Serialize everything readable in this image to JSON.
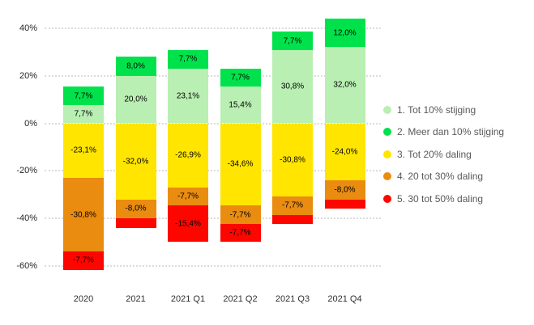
{
  "chart_data": {
    "type": "bar",
    "subtype": "diverging-stacked-bar",
    "title": "",
    "xlabel": "",
    "ylabel": "",
    "categories": [
      "2020",
      "2021",
      "2021 Q1",
      "2021 Q2",
      "2021 Q3",
      "2021 Q4"
    ],
    "y_axis": {
      "unit": "%",
      "range": [
        -65,
        48
      ],
      "grid": "dotted",
      "ticks": [
        {
          "value": 40,
          "label": "40%"
        },
        {
          "value": 20,
          "label": "20%"
        },
        {
          "value": 0,
          "label": "0%"
        },
        {
          "value": -20,
          "label": "-20%"
        },
        {
          "value": -40,
          "label": "-40%"
        },
        {
          "value": -60,
          "label": "-60%"
        }
      ]
    },
    "series": [
      {
        "name": "1. Tot 10% stijging",
        "color": "#b9efb2",
        "values": [
          7.7,
          20.0,
          23.1,
          15.4,
          30.8,
          32.0
        ],
        "labels": [
          "7,7%",
          "20,0%",
          "23,1%",
          "15,4%",
          "30,8%",
          "32,0%"
        ]
      },
      {
        "name": "2. Meer dan 10% stijging",
        "color": "#00e24b",
        "values": [
          7.7,
          8.0,
          7.7,
          7.7,
          7.7,
          12.0
        ],
        "labels": [
          "7,7%",
          "8,0%",
          "7,7%",
          "7,7%",
          "7,7%",
          "12,0%"
        ]
      },
      {
        "name": "3. Tot 20% daling",
        "color": "#ffe500",
        "values": [
          -23.1,
          -32.0,
          -26.9,
          -34.6,
          -30.8,
          -24.0
        ],
        "labels": [
          "-23,1%",
          "-32,0%",
          "-26,9%",
          "-34,6%",
          "-30,8%",
          "-24,0%"
        ]
      },
      {
        "name": "4. 20 tot 30% daling",
        "color": "#e98c10",
        "values": [
          -30.8,
          -8.0,
          -7.7,
          -7.7,
          -7.7,
          -8.0
        ],
        "labels": [
          "-30,8%",
          "-8,0%",
          "-7,7%",
          "-7,7%",
          "-7,7%",
          "-8,0%"
        ]
      },
      {
        "name": "5. 30 tot 50% daling",
        "color": "#fe0600",
        "values": [
          -7.7,
          -4.0,
          -15.4,
          -7.7,
          -3.8,
          -4.0
        ],
        "labels": [
          "-7,7%",
          "",
          "-15,4%",
          "-7,7%",
          "",
          ""
        ]
      }
    ],
    "legend": {
      "position": "right",
      "items": [
        "1. Tot 10% stijging",
        "2. Meer dan 10% stijging",
        "3. Tot 20% daling",
        "4. 20 tot 30% daling",
        "5. 30 tot 50% daling"
      ]
    }
  }
}
